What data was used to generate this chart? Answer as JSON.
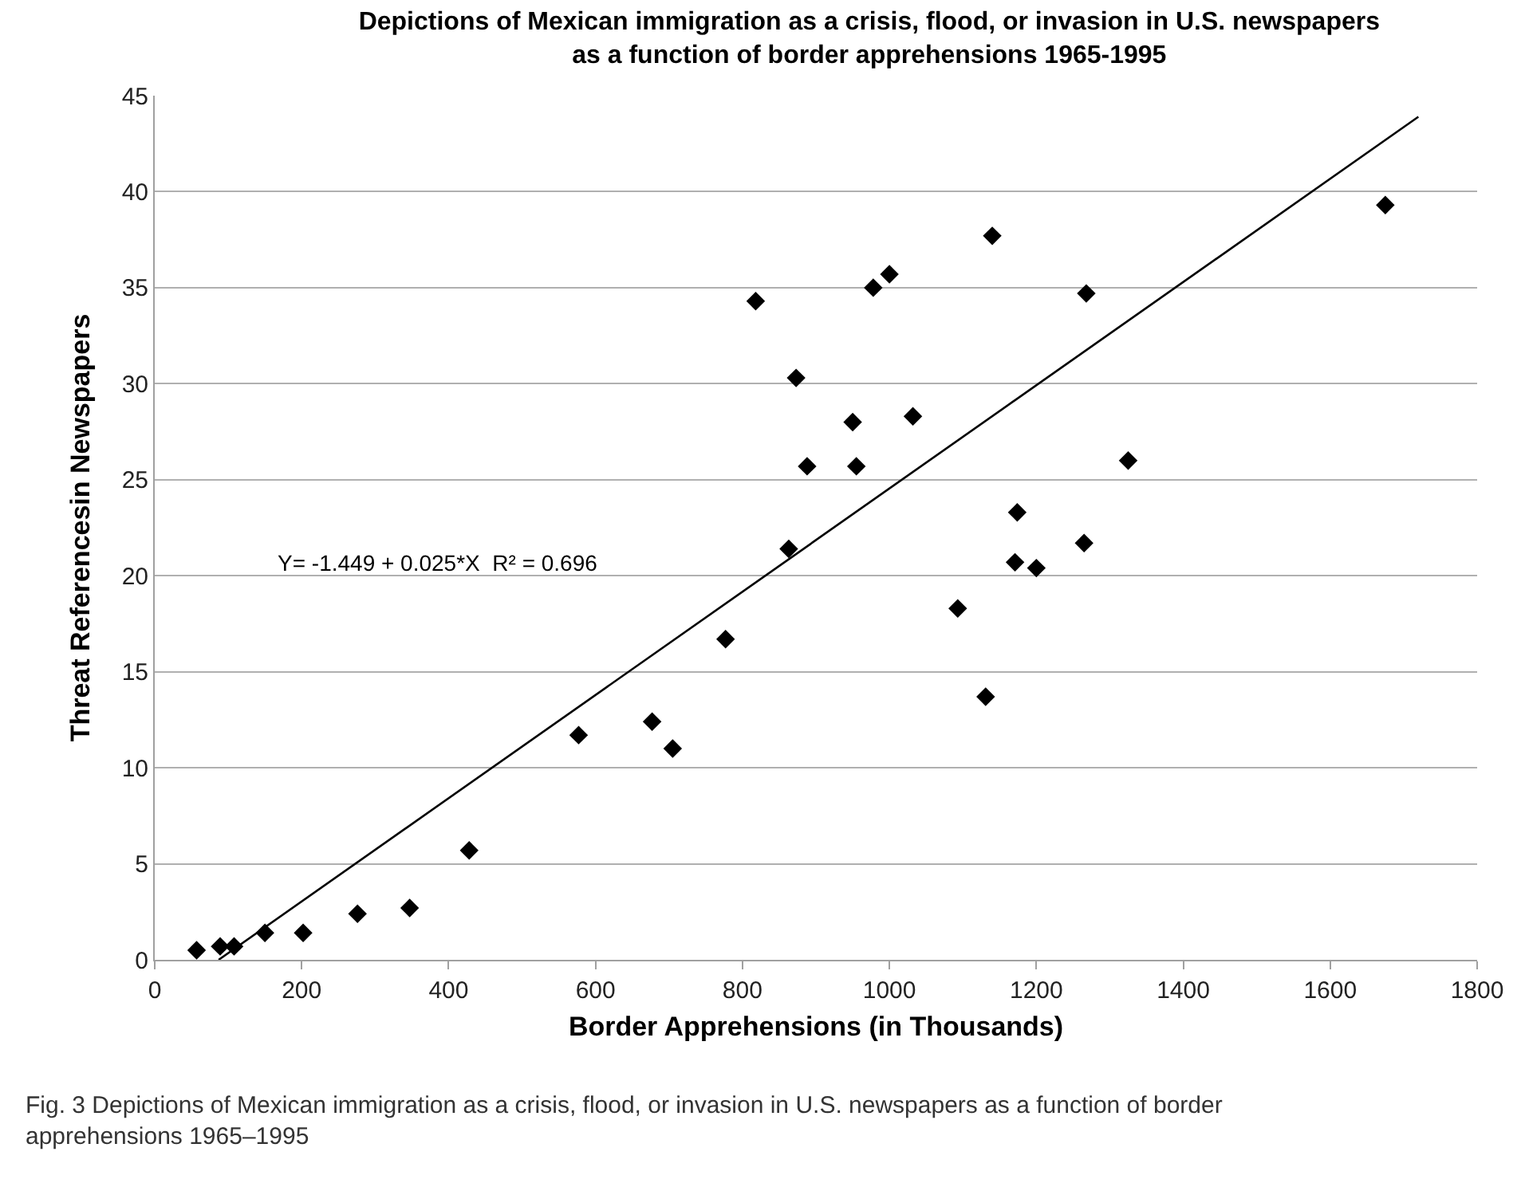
{
  "chart_data": {
    "type": "scatter",
    "title": "Depictions of Mexican immigration as a crisis, flood, or invasion in U.S. newspapers  as a function of border apprehensions 1965-1995",
    "xlabel": "Border Apprehensions (in Thousands)",
    "ylabel": "Threat Referencesin Newspapers",
    "x": [
      57,
      89,
      108,
      150,
      202,
      276,
      347,
      428,
      577,
      677,
      705,
      777,
      818,
      863,
      873,
      888,
      950,
      955,
      978,
      1000,
      1032,
      1093,
      1131,
      1140,
      1171,
      1174,
      1200,
      1265,
      1268,
      1325,
      1675
    ],
    "series": [
      {
        "color": "#000000",
        "marker": "diamond",
        "values": [
          0.5,
          0.7,
          0.7,
          1.4,
          1.4,
          2.4,
          2.7,
          5.7,
          11.7,
          12.4,
          11.0,
          16.7,
          34.3,
          21.4,
          30.3,
          25.7,
          28.0,
          25.7,
          35.0,
          35.7,
          28.3,
          18.3,
          13.7,
          37.7,
          20.7,
          23.3,
          20.4,
          21.7,
          34.7,
          26.0,
          39.3
        ]
      },
      {
        "type": "line",
        "color": "#000000",
        "x": [
          87,
          1720
        ],
        "values": [
          0.0,
          43.9
        ]
      }
    ],
    "xlim": [
      0,
      1800
    ],
    "xticks": [
      0,
      200,
      400,
      600,
      800,
      1000,
      1200,
      1400,
      1600,
      1800
    ],
    "ylim": [
      0,
      45
    ],
    "yticks": [
      0,
      5,
      10,
      15,
      20,
      25,
      30,
      35,
      40,
      45
    ],
    "grid": "y",
    "legend": false,
    "annotations": [
      "Y= -1.449 + 0.025*X  R² = 0.696",
      "Fig. 3 Depictions of Mexican immigration as a crisis, flood, or invasion in U.S. newspapers as a function of border apprehensions 1965–1995"
    ]
  }
}
